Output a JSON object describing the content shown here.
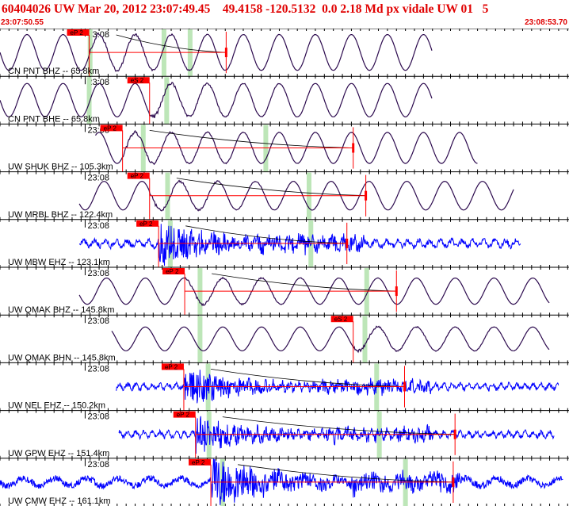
{
  "header": {
    "title": "60404026 UW Mar 20, 2012 23:07:49.45    49.4158 -120.5132  0.0 2.18 Md px vidale UW 01   5",
    "start_time": "23:07:50.55",
    "end_time": "23:08:53.70"
  },
  "colors": {
    "title": "#e00000",
    "trace_bh": "#2c0a4e",
    "trace_eh": "#0000ff",
    "pick": "#ff0000",
    "window": "#bde6b8",
    "gridline": "#000000"
  },
  "chart_data": {
    "type": "line",
    "title": "60404026 UW Mar 20, 2012 23:07:49.45    49.4158 -120.5132  0.0 2.18 Md px vidale UW 01   5",
    "x_range_seconds": [
      0,
      63.15
    ],
    "minute_tick_label": "23:08",
    "minute_tick_second": 9.45,
    "tick_interval_seconds": 1,
    "traces": [
      {
        "label": "CN PNT BHZ -- 65.8km",
        "pick": "eP 2",
        "pick_s": 9.9,
        "green_s": [
          10.0,
          18.2,
          21.1
        ],
        "red_s": 25.1,
        "kind": "bh",
        "amp": 0.75,
        "period": 4.0,
        "start_s": 0.0,
        "end_s": 48.0
      },
      {
        "label": "CN PNT BHE -- 65.8km",
        "pick": "eS 2",
        "pick_s": 16.6,
        "green_s": [
          9.9,
          18.5
        ],
        "red_s": null,
        "kind": "bh",
        "amp": 0.7,
        "period": 4.0,
        "start_s": 0.0,
        "end_s": 48.0
      },
      {
        "label": "UW SHUK BHZ -- 105.3km",
        "pick": "eP 2",
        "pick_s": 13.6,
        "green_s": [
          15.9,
          29.5
        ],
        "red_s": 39.2,
        "kind": "bh",
        "amp": 0.65,
        "period": 4.0,
        "start_s": 10.6,
        "end_s": 53.0
      },
      {
        "label": "UW MRBL BHZ -- 122.4km",
        "pick": "eP 2",
        "pick_s": 16.6,
        "green_s": [
          18.6,
          34.3
        ],
        "red_s": 40.6,
        "kind": "bh",
        "amp": 0.6,
        "period": 4.2,
        "start_s": 8.8,
        "end_s": 57.0
      },
      {
        "label": "UW MBW EHZ -- 123.1km",
        "pick": "eP 2",
        "pick_s": 17.6,
        "green_s": [
          18.9,
          34.5
        ],
        "red_s": 38.5,
        "kind": "eh",
        "amp": 0.35,
        "period": 1.2,
        "start_s": 8.8,
        "end_s": 57.8
      },
      {
        "label": "UW QMAK BHZ -- 145.8km",
        "pick": "eP 2",
        "pick_s": 20.5,
        "green_s": [
          22.2,
          40.7
        ],
        "red_s": 44.0,
        "kind": "bh",
        "amp": 0.55,
        "period": 4.3,
        "start_s": 8.8,
        "end_s": 61.0
      },
      {
        "label": "UW QMAK BHN -- 145.8km",
        "pick": "eS 2",
        "pick_s": 39.2,
        "green_s": [
          22.2,
          40.5
        ],
        "red_s": null,
        "kind": "bh",
        "amp": 0.5,
        "period": 4.3,
        "start_s": 12.4,
        "end_s": 61.0
      },
      {
        "label": "UW NEL EHZ -- 150.2km",
        "pick": "eP 2",
        "pick_s": 20.4,
        "green_s": [
          23.1,
          41.8
        ],
        "red_s": 44.9,
        "kind": "eh",
        "amp": 0.3,
        "period": 0.9,
        "start_s": 12.9,
        "end_s": 62.0
      },
      {
        "label": "UW GPW EHZ -- 151.4km",
        "pick": "eP 2",
        "pick_s": 21.7,
        "green_s": [
          23.2,
          42.1
        ],
        "red_s": 50.5,
        "kind": "eh",
        "amp": 0.3,
        "period": 0.9,
        "start_s": 13.2,
        "end_s": 61.5
      },
      {
        "label": "UW CMW EHZ -- 161.1km",
        "pick": "eP 2",
        "pick_s": 23.4,
        "green_s": [
          24.7,
          45.0
        ],
        "red_s": 50.3,
        "kind": "eh",
        "amp": 0.45,
        "period": 3.5,
        "start_s": 0.0,
        "end_s": 62.5
      }
    ]
  }
}
